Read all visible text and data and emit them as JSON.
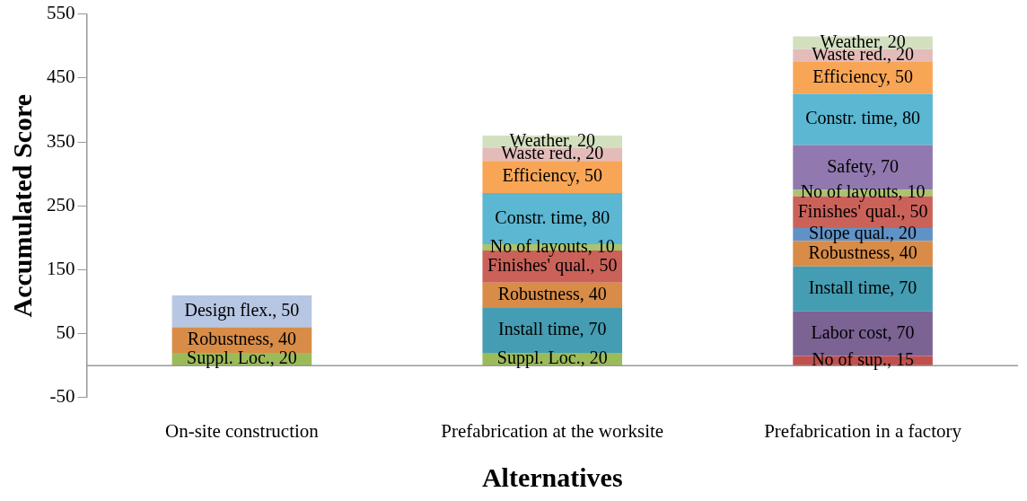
{
  "chart_data": {
    "type": "bar",
    "stacked": true,
    "xlabel": "Alternatives",
    "ylabel": "Accumulated Score",
    "categories": [
      "On-site construction",
      "Prefabrication at the worksite",
      "Prefabrication in a factory"
    ],
    "ylim": [
      -50,
      550
    ],
    "yticks": [
      -50,
      50,
      150,
      250,
      350,
      450,
      550
    ],
    "grid": false,
    "legend": false,
    "series": [
      {
        "color": "#9bbb59",
        "values": [
          20,
          20,
          null
        ],
        "value_labels": [
          "Suppl. Loc., 20",
          "Suppl. Loc., 20",
          null
        ]
      },
      {
        "color": "#c0504d",
        "values": [
          null,
          null,
          15
        ],
        "value_labels": [
          null,
          null,
          "No of sup., 15"
        ]
      },
      {
        "color": "#7b6394",
        "values": [
          null,
          null,
          70
        ],
        "value_labels": [
          null,
          null,
          "Labor cost, 70"
        ]
      },
      {
        "color": "#449db3",
        "values": [
          null,
          70,
          70
        ],
        "value_labels": [
          null,
          "Install time, 70",
          "Install time, 70"
        ]
      },
      {
        "color": "#d88c47",
        "values": [
          40,
          40,
          40
        ],
        "value_labels": [
          "Robustness, 40",
          "Robustness, 40",
          "Robustness, 40"
        ]
      },
      {
        "color": "#b7c7e3",
        "values": [
          50,
          null,
          null
        ],
        "value_labels": [
          "Design flex., 50",
          null,
          null
        ]
      },
      {
        "color": "#5f93c8",
        "values": [
          null,
          null,
          20
        ],
        "value_labels": [
          null,
          null,
          "Slope qual., 20"
        ]
      },
      {
        "color": "#cb625a",
        "values": [
          null,
          50,
          50
        ],
        "value_labels": [
          null,
          "Finishes' qual., 50",
          "Finishes' qual., 50"
        ]
      },
      {
        "color": "#a9c46c",
        "values": [
          null,
          10,
          10
        ],
        "value_labels": [
          null,
          "No of layouts, 10",
          "No of layouts, 10"
        ]
      },
      {
        "color": "#9179b0",
        "values": [
          null,
          null,
          70
        ],
        "value_labels": [
          null,
          null,
          "Safety, 70"
        ]
      },
      {
        "color": "#5bb7d2",
        "values": [
          null,
          80,
          80
        ],
        "value_labels": [
          null,
          "Constr. time, 80",
          "Constr. time, 80"
        ]
      },
      {
        "color": "#f8a656",
        "values": [
          null,
          50,
          50
        ],
        "value_labels": [
          null,
          "Efficiency, 50",
          "Efficiency, 50"
        ]
      },
      {
        "color": "#e3bcba",
        "values": [
          null,
          20,
          20
        ],
        "value_labels": [
          null,
          "Waste red., 20",
          "Waste red., 20"
        ]
      },
      {
        "color": "#d3e0bf",
        "values": [
          null,
          20,
          20
        ],
        "value_labels": [
          null,
          "Weather, 20",
          "Weather, 20"
        ]
      }
    ]
  }
}
